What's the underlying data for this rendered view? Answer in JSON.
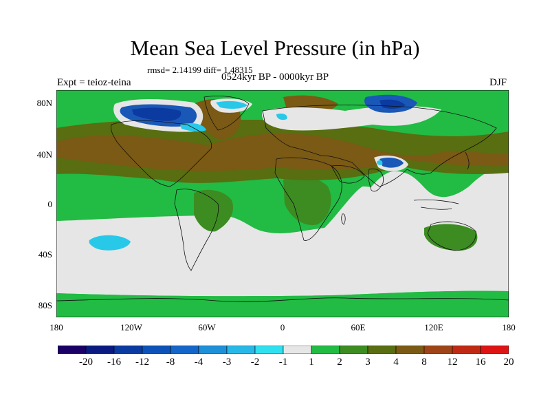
{
  "header": {
    "title": "Mean Sea Level Pressure (in hPa)",
    "stats": "rmsd= 2.14199 diff= 1.48315",
    "experiment": "Expt = teioz-teina",
    "period": "0524kyr BP - 0000kyr BP",
    "season": "DJF"
  },
  "axes": {
    "lat_labels": [
      "80N",
      "40N",
      "0",
      "40S",
      "80S"
    ],
    "lon_labels": [
      "180",
      "120W",
      "60W",
      "0",
      "60E",
      "120E",
      "180"
    ]
  },
  "colorbar": {
    "labels": [
      "-20",
      "-16",
      "-12",
      "-8",
      "-4",
      "-3",
      "-2",
      "-1",
      "1",
      "2",
      "3",
      "4",
      "8",
      "12",
      "16",
      "20"
    ],
    "colors": [
      "#1a0066",
      "#0a1a80",
      "#0b3aa0",
      "#0d52b8",
      "#1466c8",
      "#1d90d8",
      "#28b8e8",
      "#30e0ee",
      "#e6e6e6",
      "#22bb44",
      "#3c8c22",
      "#586e10",
      "#7a5a14",
      "#9e4418",
      "#c02a14",
      "#dd1414"
    ]
  },
  "map_colors": {
    "ocean_neutral": "#e6e6e6",
    "green_2": "#22bb44",
    "green_3": "#3c8c22",
    "olive_4": "#586e10",
    "brown_8": "#7a5a14",
    "blue_low": "#1a58b8",
    "cyan_low": "#28c8e8"
  }
}
